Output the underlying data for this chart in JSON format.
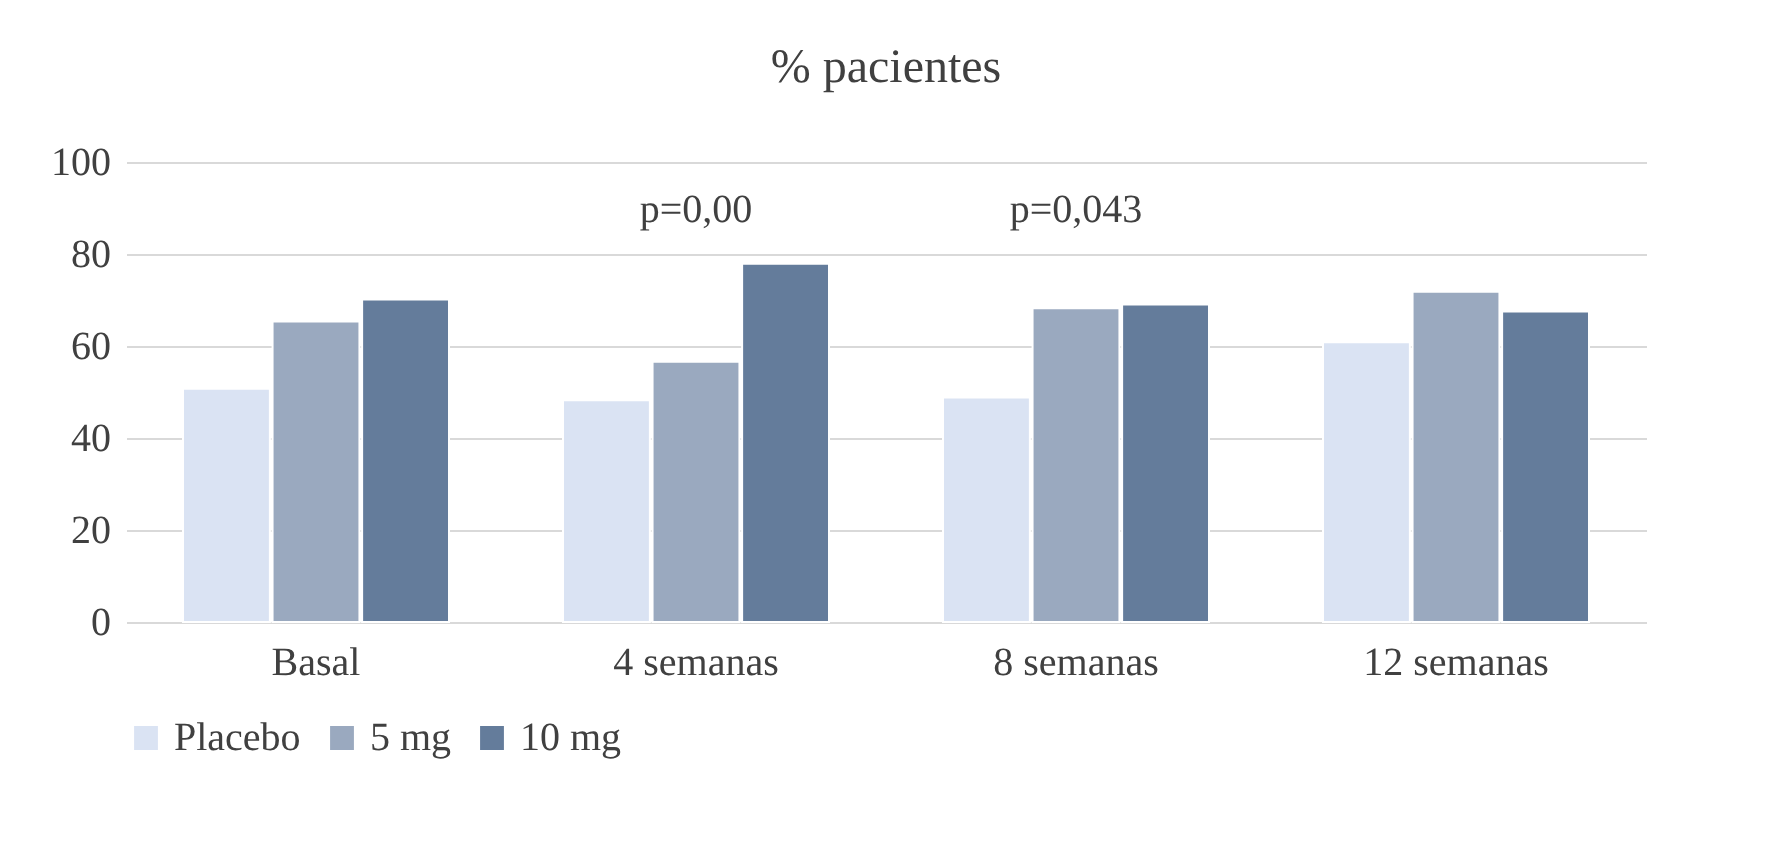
{
  "chart_data": {
    "type": "bar",
    "title": "% pacientes",
    "categories": [
      "Basal",
      "4 semanas",
      "8 semanas",
      "12 semanas"
    ],
    "series": [
      {
        "name": "Placebo",
        "color": "#dae3f3",
        "values": [
          50.7,
          48.2,
          48.8,
          60.8
        ]
      },
      {
        "name": "5 mg",
        "color": "#9aa9bf",
        "values": [
          65.3,
          56.6,
          68.2,
          71.8
        ]
      },
      {
        "name": "10 mg",
        "color": "#647c9b",
        "values": [
          70.1,
          77.9,
          69.0,
          67.5
        ]
      }
    ],
    "ylim": [
      0,
      100
    ],
    "yticks": [
      0,
      20,
      40,
      60,
      80,
      100
    ],
    "grid": "y",
    "legend": "bottom",
    "annotations": [
      "p=0,00",
      "p=0,043"
    ]
  }
}
